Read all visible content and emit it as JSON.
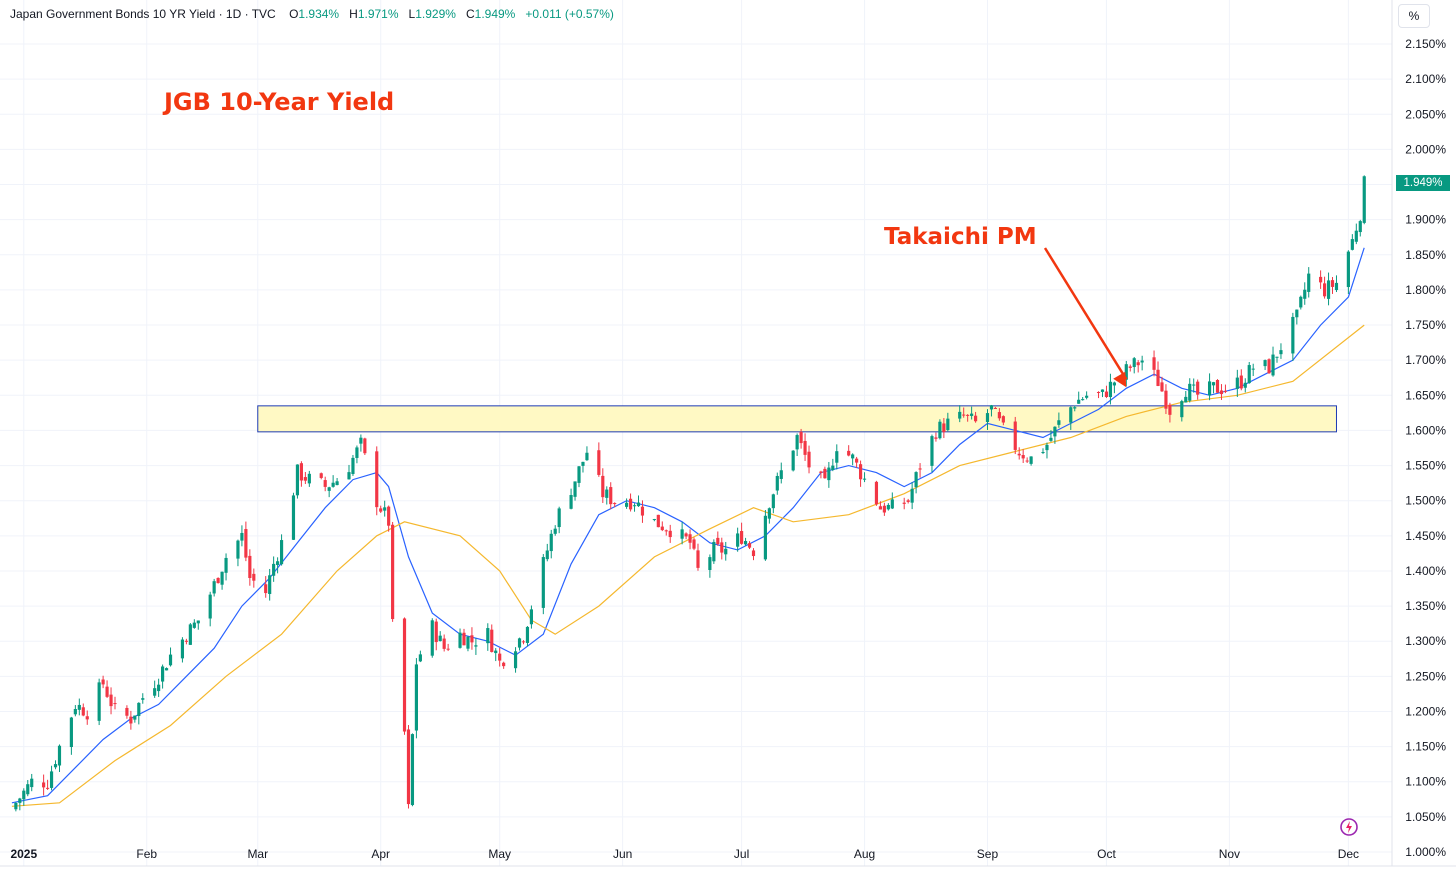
{
  "header": {
    "symbol": "Japan Government Bonds 10 YR Yield · 1D · TVC",
    "open_label": "O",
    "open": "1.934%",
    "high_label": "H",
    "high": "1.971%",
    "low_label": "L",
    "low": "1.929%",
    "close_label": "C",
    "close": "1.949%",
    "change": "+0.011 (+0.57%)"
  },
  "unit_button": "%",
  "last_price_label": "1.949%",
  "annotations": {
    "title": "JGB 10-Year Yield",
    "event": "Takaichi PM"
  },
  "colors": {
    "up": "#089981",
    "down": "#f23645",
    "ma_fast": "#2962ff",
    "ma_slow": "#f5b82e",
    "band_fill": "#fff9c4",
    "band_stroke": "#1e3bb3",
    "annotation": "#f23710",
    "grid": "#f0f3fa",
    "axis_text": "#131722"
  },
  "chart_data": {
    "type": "candlestick",
    "y_axis": {
      "unit": "%",
      "range": [
        0.98,
        2.17
      ],
      "ticks": [
        "2.150%",
        "2.100%",
        "2.050%",
        "2.000%",
        "1.950%",
        "1.900%",
        "1.850%",
        "1.800%",
        "1.750%",
        "1.700%",
        "1.650%",
        "1.600%",
        "1.550%",
        "1.500%",
        "1.450%",
        "1.400%",
        "1.350%",
        "1.300%",
        "1.250%",
        "1.200%",
        "1.150%",
        "1.100%",
        "1.050%",
        "1.000%"
      ]
    },
    "x_axis": {
      "range": [
        "2024-12-26",
        "2025-12-12"
      ],
      "ticks": [
        {
          "label": "2025",
          "date": "2025-01-01"
        },
        {
          "label": "Feb",
          "date": "2025-02-01"
        },
        {
          "label": "Mar",
          "date": "2025-03-01"
        },
        {
          "label": "Apr",
          "date": "2025-04-01"
        },
        {
          "label": "May",
          "date": "2025-05-01"
        },
        {
          "label": "Jun",
          "date": "2025-06-01"
        },
        {
          "label": "Jul",
          "date": "2025-07-01"
        },
        {
          "label": "Aug",
          "date": "2025-08-01"
        },
        {
          "label": "Sep",
          "date": "2025-09-01"
        },
        {
          "label": "Oct",
          "date": "2025-10-01"
        },
        {
          "label": "Nov",
          "date": "2025-11-01"
        },
        {
          "label": "Dec",
          "date": "2025-12-01"
        }
      ]
    },
    "close_path": [
      [
        "2024-12-30",
        1.07
      ],
      [
        "2025-01-03",
        1.1
      ],
      [
        "2025-01-07",
        1.1
      ],
      [
        "2025-01-10",
        1.15
      ],
      [
        "2025-01-14",
        1.21
      ],
      [
        "2025-01-17",
        1.2
      ],
      [
        "2025-01-21",
        1.24
      ],
      [
        "2025-01-24",
        1.2
      ],
      [
        "2025-01-28",
        1.19
      ],
      [
        "2025-01-31",
        1.22
      ],
      [
        "2025-02-04",
        1.25
      ],
      [
        "2025-02-07",
        1.28
      ],
      [
        "2025-02-11",
        1.31
      ],
      [
        "2025-02-14",
        1.33
      ],
      [
        "2025-02-18",
        1.38
      ],
      [
        "2025-02-21",
        1.42
      ],
      [
        "2025-02-25",
        1.45
      ],
      [
        "2025-02-27",
        1.39
      ],
      [
        "2025-03-03",
        1.37
      ],
      [
        "2025-03-05",
        1.41
      ],
      [
        "2025-03-07",
        1.44
      ],
      [
        "2025-03-11",
        1.54
      ],
      [
        "2025-03-14",
        1.53
      ],
      [
        "2025-03-18",
        1.52
      ],
      [
        "2025-03-21",
        1.53
      ],
      [
        "2025-03-24",
        1.55
      ],
      [
        "2025-03-27",
        1.58
      ],
      [
        "2025-03-31",
        1.5
      ],
      [
        "2025-04-03",
        1.47
      ],
      [
        "2025-04-04",
        1.32
      ],
      [
        "2025-04-07",
        1.17
      ],
      [
        "2025-04-08",
        1.06
      ],
      [
        "2025-04-10",
        1.27
      ],
      [
        "2025-04-14",
        1.32
      ],
      [
        "2025-04-17",
        1.29
      ],
      [
        "2025-04-21",
        1.31
      ],
      [
        "2025-04-24",
        1.3
      ],
      [
        "2025-04-28",
        1.31
      ],
      [
        "2025-05-01",
        1.27
      ],
      [
        "2025-05-07",
        1.31
      ],
      [
        "2025-05-12",
        1.41
      ],
      [
        "2025-05-15",
        1.47
      ],
      [
        "2025-05-20",
        1.53
      ],
      [
        "2025-05-23",
        1.57
      ],
      [
        "2025-05-27",
        1.51
      ],
      [
        "2025-05-30",
        1.5
      ],
      [
        "2025-06-04",
        1.5
      ],
      [
        "2025-06-09",
        1.47
      ],
      [
        "2025-06-13",
        1.46
      ],
      [
        "2025-06-18",
        1.44
      ],
      [
        "2025-06-20",
        1.4
      ],
      [
        "2025-06-24",
        1.43
      ],
      [
        "2025-06-27",
        1.43
      ],
      [
        "2025-07-01",
        1.45
      ],
      [
        "2025-07-04",
        1.43
      ],
      [
        "2025-07-08",
        1.5
      ],
      [
        "2025-07-11",
        1.54
      ],
      [
        "2025-07-15",
        1.59
      ],
      [
        "2025-07-18",
        1.55
      ],
      [
        "2025-07-22",
        1.52
      ],
      [
        "2025-07-25",
        1.58
      ],
      [
        "2025-07-29",
        1.56
      ],
      [
        "2025-08-01",
        1.53
      ],
      [
        "2025-08-05",
        1.49
      ],
      [
        "2025-08-08",
        1.49
      ],
      [
        "2025-08-12",
        1.5
      ],
      [
        "2025-08-15",
        1.55
      ],
      [
        "2025-08-19",
        1.6
      ],
      [
        "2025-08-22",
        1.61
      ],
      [
        "2025-08-26",
        1.62
      ],
      [
        "2025-08-29",
        1.61
      ],
      [
        "2025-09-02",
        1.63
      ],
      [
        "2025-09-05",
        1.6
      ],
      [
        "2025-09-09",
        1.57
      ],
      [
        "2025-09-12",
        1.56
      ],
      [
        "2025-09-16",
        1.58
      ],
      [
        "2025-09-19",
        1.61
      ],
      [
        "2025-09-23",
        1.64
      ],
      [
        "2025-09-26",
        1.65
      ],
      [
        "2025-09-30",
        1.65
      ],
      [
        "2025-10-03",
        1.67
      ],
      [
        "2025-10-07",
        1.69
      ],
      [
        "2025-10-10",
        1.7
      ],
      [
        "2025-10-14",
        1.67
      ],
      [
        "2025-10-17",
        1.63
      ],
      [
        "2025-10-21",
        1.66
      ],
      [
        "2025-10-24",
        1.65
      ],
      [
        "2025-10-28",
        1.66
      ],
      [
        "2025-10-31",
        1.66
      ],
      [
        "2025-11-04",
        1.67
      ],
      [
        "2025-11-07",
        1.69
      ],
      [
        "2025-11-11",
        1.69
      ],
      [
        "2025-11-14",
        1.72
      ],
      [
        "2025-11-18",
        1.76
      ],
      [
        "2025-11-21",
        1.82
      ],
      [
        "2025-11-25",
        1.8
      ],
      [
        "2025-11-28",
        1.81
      ],
      [
        "2025-12-02",
        1.87
      ],
      [
        "2025-12-04",
        1.91
      ],
      [
        "2025-12-05",
        1.95
      ]
    ],
    "moving_averages": [
      {
        "color": "#2962ff",
        "points": [
          [
            "2024-12-29",
            1.07
          ],
          [
            "2025-01-07",
            1.08
          ],
          [
            "2025-01-14",
            1.12
          ],
          [
            "2025-01-21",
            1.16
          ],
          [
            "2025-01-28",
            1.19
          ],
          [
            "2025-02-04",
            1.21
          ],
          [
            "2025-02-11",
            1.25
          ],
          [
            "2025-02-18",
            1.29
          ],
          [
            "2025-02-25",
            1.35
          ],
          [
            "2025-03-04",
            1.39
          ],
          [
            "2025-03-11",
            1.44
          ],
          [
            "2025-03-18",
            1.49
          ],
          [
            "2025-03-25",
            1.53
          ],
          [
            "2025-03-31",
            1.54
          ],
          [
            "2025-04-03",
            1.52
          ],
          [
            "2025-04-08",
            1.42
          ],
          [
            "2025-04-14",
            1.34
          ],
          [
            "2025-04-21",
            1.31
          ],
          [
            "2025-04-28",
            1.3
          ],
          [
            "2025-05-05",
            1.28
          ],
          [
            "2025-05-12",
            1.31
          ],
          [
            "2025-05-19",
            1.41
          ],
          [
            "2025-05-26",
            1.48
          ],
          [
            "2025-06-02",
            1.5
          ],
          [
            "2025-06-09",
            1.49
          ],
          [
            "2025-06-16",
            1.47
          ],
          [
            "2025-06-23",
            1.44
          ],
          [
            "2025-06-30",
            1.43
          ],
          [
            "2025-07-07",
            1.45
          ],
          [
            "2025-07-14",
            1.49
          ],
          [
            "2025-07-21",
            1.54
          ],
          [
            "2025-07-28",
            1.55
          ],
          [
            "2025-08-04",
            1.54
          ],
          [
            "2025-08-11",
            1.52
          ],
          [
            "2025-08-18",
            1.54
          ],
          [
            "2025-08-25",
            1.58
          ],
          [
            "2025-09-01",
            1.61
          ],
          [
            "2025-09-08",
            1.6
          ],
          [
            "2025-09-15",
            1.59
          ],
          [
            "2025-09-22",
            1.61
          ],
          [
            "2025-09-29",
            1.63
          ],
          [
            "2025-10-06",
            1.66
          ],
          [
            "2025-10-13",
            1.68
          ],
          [
            "2025-10-20",
            1.66
          ],
          [
            "2025-10-27",
            1.65
          ],
          [
            "2025-11-03",
            1.66
          ],
          [
            "2025-11-10",
            1.68
          ],
          [
            "2025-11-17",
            1.7
          ],
          [
            "2025-11-24",
            1.75
          ],
          [
            "2025-12-01",
            1.79
          ],
          [
            "2025-12-05",
            1.86
          ]
        ]
      },
      {
        "color": "#f5b82e",
        "points": [
          [
            "2024-12-29",
            1.065
          ],
          [
            "2025-01-10",
            1.07
          ],
          [
            "2025-01-24",
            1.13
          ],
          [
            "2025-02-07",
            1.18
          ],
          [
            "2025-02-21",
            1.25
          ],
          [
            "2025-03-07",
            1.31
          ],
          [
            "2025-03-21",
            1.4
          ],
          [
            "2025-03-31",
            1.45
          ],
          [
            "2025-04-07",
            1.47
          ],
          [
            "2025-04-21",
            1.45
          ],
          [
            "2025-05-01",
            1.4
          ],
          [
            "2025-05-09",
            1.33
          ],
          [
            "2025-05-15",
            1.31
          ],
          [
            "2025-05-26",
            1.35
          ],
          [
            "2025-06-09",
            1.42
          ],
          [
            "2025-06-23",
            1.46
          ],
          [
            "2025-07-04",
            1.49
          ],
          [
            "2025-07-14",
            1.47
          ],
          [
            "2025-07-28",
            1.48
          ],
          [
            "2025-08-11",
            1.51
          ],
          [
            "2025-08-25",
            1.55
          ],
          [
            "2025-09-08",
            1.57
          ],
          [
            "2025-09-22",
            1.59
          ],
          [
            "2025-10-06",
            1.62
          ],
          [
            "2025-10-20",
            1.64
          ],
          [
            "2025-11-03",
            1.65
          ],
          [
            "2025-11-17",
            1.67
          ],
          [
            "2025-12-05",
            1.75
          ]
        ]
      }
    ],
    "resistance_band": {
      "from": "2025-03-01",
      "to": "2025-11-28",
      "y_low": 1.598,
      "y_high": 1.635
    },
    "last_value": 1.949,
    "event_marker": {
      "label": "Takaichi PM",
      "date": "2025-10-06",
      "value": 1.65
    }
  }
}
